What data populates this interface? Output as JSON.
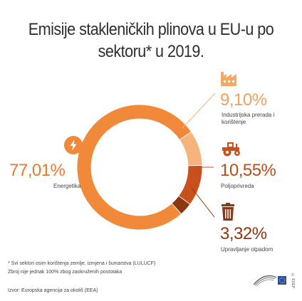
{
  "title": {
    "line1": "Emisije stakleničkih plinova u EU-u po",
    "line2": "sektoru* u 2019."
  },
  "colors": {
    "energy": "#f08a3a",
    "industry": "#f6b37c",
    "agriculture": "#c8501c",
    "waste": "#8e3512",
    "text_orange": "#e8792b",
    "text_brown": "#bf4b18"
  },
  "icons": {
    "energy": "lightning-icon",
    "industry": "factory-icon",
    "agriculture": "tractor-icon",
    "waste": "trash-bin-icon",
    "logo": "european-parliament-logo"
  },
  "chart_data": {
    "type": "pie",
    "donut": true,
    "categories": [
      "Energetika",
      "Industrijska prerada i korištenje",
      "Poljoprivreda",
      "Upravljanje otpadom"
    ],
    "values": [
      77.01,
      9.1,
      10.55,
      3.32
    ],
    "value_labels": [
      "77,01%",
      "9,10%",
      "10,55%",
      "3,32%"
    ]
  },
  "labels": {
    "energy_pct": "77,01%",
    "energy_name": "Energetika",
    "industry_pct": "9,10%",
    "industry_name_line1": "Industrijska prerada i",
    "industry_name_line2": "korištenje",
    "agri_pct": "10,55%",
    "agri_name": "Poljoprivreda",
    "waste_pct": "3,32%",
    "waste_name": "Upravljanje otpadom"
  },
  "notes": {
    "footnote": "* Svi sektori osim korištenja zemlje, izmjena i šumarstva (LULUCF)",
    "rounding": "Zbroj nije jednak 100% zbog zaokruženih postotaka",
    "source": "Izvor: Europska agencija za okoliš (EEA)"
  },
  "logo": {
    "text": "© EUEP"
  }
}
